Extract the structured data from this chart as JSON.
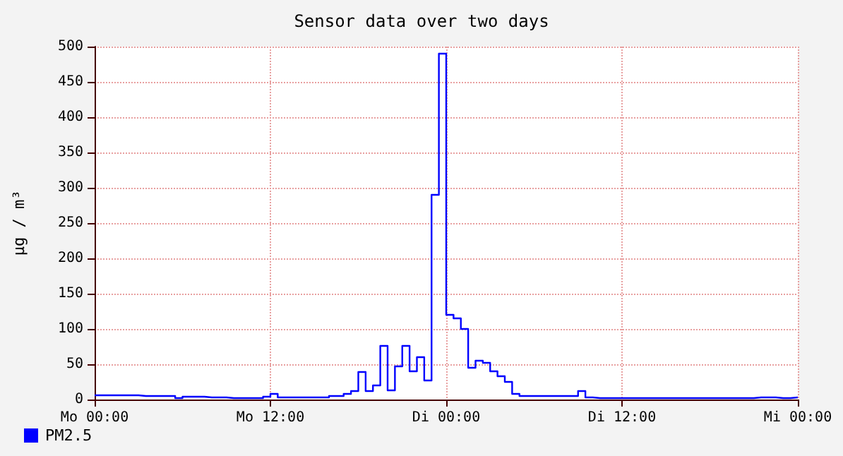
{
  "chart_data": {
    "type": "step",
    "title": "Sensor data over two days",
    "ylabel": "µg / m³",
    "categories": [
      "Mo 00:00",
      null,
      null,
      null,
      null,
      null,
      null,
      null,
      null,
      null,
      null,
      null,
      null,
      null,
      null,
      null,
      null,
      null,
      null,
      null,
      null,
      null,
      null,
      null,
      "Mo 12:00",
      null,
      null,
      null,
      null,
      null,
      null,
      null,
      null,
      null,
      null,
      null,
      null,
      null,
      null,
      null,
      null,
      null,
      null,
      null,
      null,
      null,
      null,
      null,
      "Di 00:00",
      null,
      null,
      null,
      null,
      null,
      null,
      null,
      null,
      null,
      null,
      null,
      null,
      null,
      null,
      null,
      null,
      null,
      null,
      null,
      null,
      null,
      null,
      null,
      "Di 12:00",
      null,
      null,
      null,
      null,
      null,
      null,
      null,
      null,
      null,
      null,
      null,
      null,
      null,
      null,
      null,
      null,
      null,
      null,
      null,
      null,
      null,
      null,
      null,
      "Mi 00:00"
    ],
    "series": [
      {
        "name": "PM2.5",
        "color": "#0000ff",
        "values": [
          6,
          6,
          6,
          6,
          6,
          6,
          5,
          5,
          5,
          5,
          5,
          2,
          4,
          4,
          4,
          3,
          3,
          3,
          2,
          2,
          2,
          2,
          2,
          4,
          8,
          3,
          3,
          3,
          3,
          3,
          3,
          3,
          5,
          5,
          8,
          12,
          39,
          12,
          20,
          76,
          13,
          47,
          76,
          40,
          60,
          27,
          290,
          490,
          120,
          115,
          100,
          45,
          55,
          52,
          40,
          33,
          25,
          8,
          5,
          5,
          5,
          5,
          5,
          5,
          5,
          5,
          12,
          3,
          2,
          2,
          2,
          2,
          2,
          2,
          2,
          2,
          2,
          2,
          2,
          2,
          2,
          2,
          2,
          2,
          2,
          2,
          2,
          2,
          2,
          2,
          3,
          3,
          3,
          2,
          2,
          3,
          2
        ]
      }
    ],
    "ylim": [
      0,
      500
    ],
    "yticks": [
      0,
      50,
      100,
      150,
      200,
      250,
      300,
      350,
      400,
      450,
      500
    ],
    "grid": true,
    "legend": "bottom left",
    "marker": "none",
    "line_style": "solid"
  }
}
